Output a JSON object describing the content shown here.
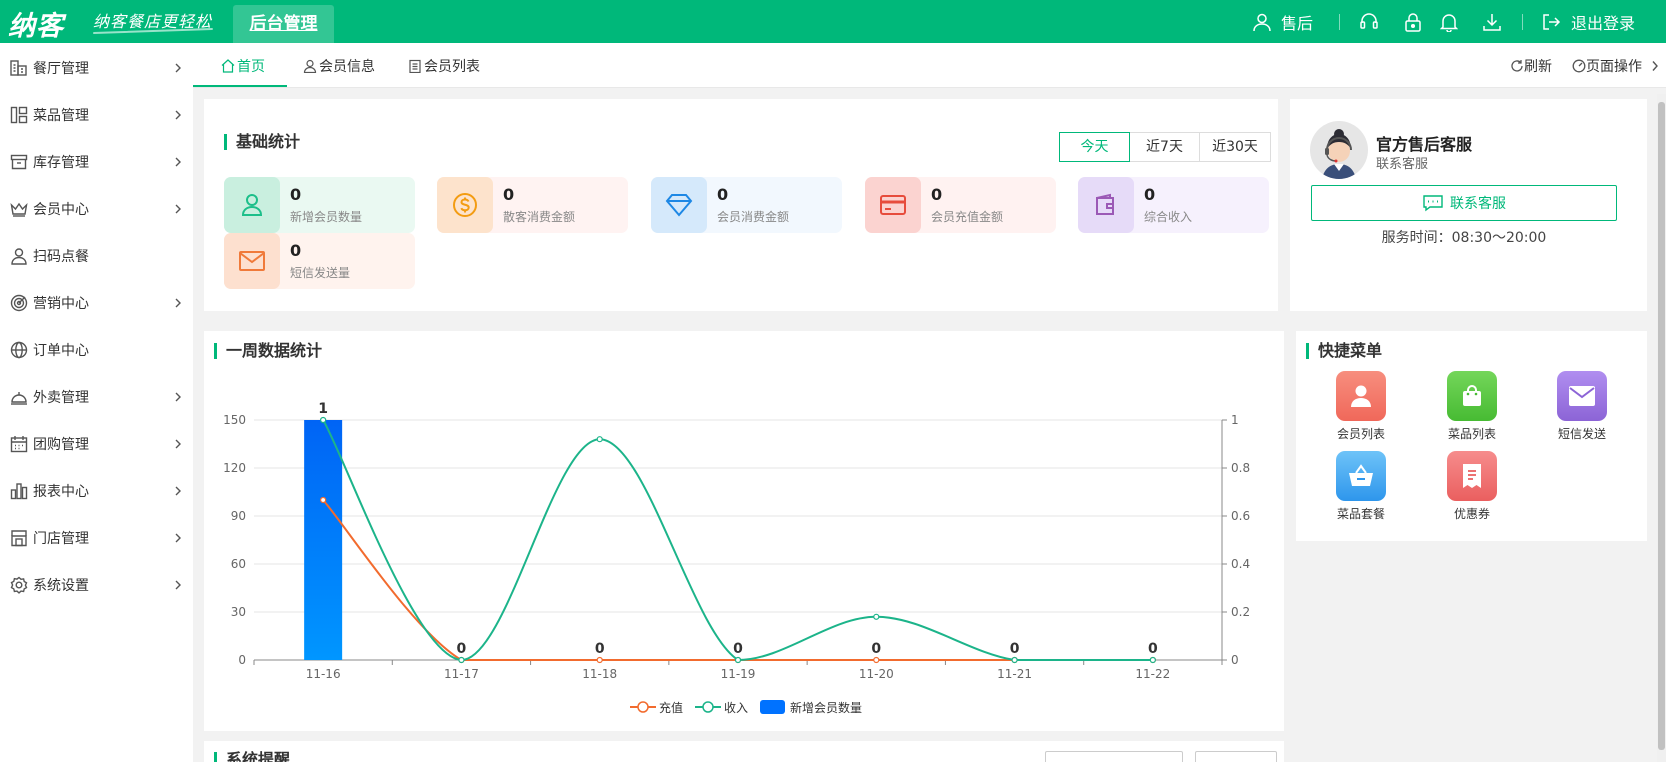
{
  "brand": {
    "logo": "纳客",
    "slogan": "纳客餐店更轻松"
  },
  "header": {
    "active_tab": "后台管理",
    "user": "售后",
    "logout": "退出登录"
  },
  "sidebar": {
    "items": [
      {
        "label": "餐厅管理",
        "icon": "restaurant-icon",
        "has_submenu": true
      },
      {
        "label": "菜品管理",
        "icon": "dishes-icon",
        "has_submenu": true
      },
      {
        "label": "库存管理",
        "icon": "inventory-icon",
        "has_submenu": true
      },
      {
        "label": "会员中心",
        "icon": "crown-icon",
        "has_submenu": true
      },
      {
        "label": "扫码点餐",
        "icon": "person-icon",
        "has_submenu": false
      },
      {
        "label": "营销中心",
        "icon": "target-icon",
        "has_submenu": true
      },
      {
        "label": "订单中心",
        "icon": "globe-icon",
        "has_submenu": false
      },
      {
        "label": "外卖管理",
        "icon": "bell-cover-icon",
        "has_submenu": true
      },
      {
        "label": "团购管理",
        "icon": "calendar-icon",
        "has_submenu": true
      },
      {
        "label": "报表中心",
        "icon": "bar-chart-icon",
        "has_submenu": true
      },
      {
        "label": "门店管理",
        "icon": "store-icon",
        "has_submenu": true
      },
      {
        "label": "系统设置",
        "icon": "gear-icon",
        "has_submenu": true
      }
    ]
  },
  "tabs": {
    "items": [
      {
        "label": "首页"
      },
      {
        "label": "会员信息"
      },
      {
        "label": "会员列表"
      }
    ],
    "refresh": "刷新",
    "page_ops": "页面操作"
  },
  "basic_stats": {
    "title": "基础统计",
    "ranges": [
      "今天",
      "近7天",
      "近30天"
    ],
    "active_range": "今天",
    "cards": [
      {
        "value": "0",
        "label": "新增会员数量",
        "icon": "user-icon",
        "color": "#1cbf8a",
        "bg": "#eaf9f2",
        "icon_bg": "#c9efdf"
      },
      {
        "value": "0",
        "label": "散客消费金额",
        "icon": "dollar-coin-icon",
        "color": "#f39c12",
        "bg": "#fff3f2",
        "icon_bg": "#fde3cc"
      },
      {
        "value": "0",
        "label": "会员消费金额",
        "icon": "diamond-icon",
        "color": "#1e88e5",
        "bg": "#f2f8fe",
        "icon_bg": "#d5e9fb"
      },
      {
        "value": "0",
        "label": "会员充值金额",
        "icon": "card-icon",
        "color": "#e74c3c",
        "bg": "#fff2f1",
        "icon_bg": "#fbd3d0"
      },
      {
        "value": "0",
        "label": "综合收入",
        "icon": "wallet-icon",
        "color": "#9b59b6",
        "bg": "#f6f1fd",
        "icon_bg": "#e6dbf8"
      },
      {
        "value": "0",
        "label": "短信发送量",
        "icon": "mail-icon",
        "color": "#f07a3a",
        "bg": "#fff3ee",
        "icon_bg": "#fde0cf"
      }
    ]
  },
  "service": {
    "name": "官方售后客服",
    "subtitle": "联系客服",
    "button": "联系客服",
    "hours": "服务时间：08:30～20:00"
  },
  "weekly": {
    "title": "一周数据统计",
    "legend": [
      "充值",
      "收入",
      "新增会员数量"
    ],
    "colors": {
      "recharge": "#f26b2e",
      "income": "#1cb48a",
      "bar": "#0072ff"
    }
  },
  "chart_data": {
    "type": "bar",
    "categories": [
      "11-16",
      "11-17",
      "11-18",
      "11-19",
      "11-20",
      "11-21",
      "11-22"
    ],
    "series": [
      {
        "name": "充值",
        "type": "line",
        "axis": "left",
        "values": [
          100,
          0,
          0,
          0,
          0,
          0,
          0
        ]
      },
      {
        "name": "收入",
        "type": "line",
        "axis": "left",
        "values": [
          150,
          0,
          138,
          0,
          27,
          0,
          0
        ]
      },
      {
        "name": "新增会员数量",
        "type": "bar",
        "axis": "right",
        "values": [
          1,
          0,
          0,
          0,
          0,
          0,
          0
        ]
      }
    ],
    "y_left": {
      "ticks": [
        0,
        30,
        60,
        90,
        120,
        150
      ],
      "lim": [
        0,
        150
      ]
    },
    "y_right": {
      "ticks": [
        "0",
        "0.2",
        "0.4",
        "0.6",
        "0.8",
        "1"
      ],
      "lim": [
        0,
        1
      ]
    },
    "bar_labels": [
      "1",
      "0",
      "0",
      "0",
      "0",
      "0",
      "0"
    ],
    "grid": true,
    "legend": "bottom-center"
  },
  "quick_menu": {
    "title": "快捷菜单",
    "items": [
      {
        "label": "会员列表",
        "icon": "user-icon",
        "color": "#f47c6a"
      },
      {
        "label": "菜品列表",
        "icon": "shopping-bag-icon",
        "color": "#5cc942"
      },
      {
        "label": "短信发送",
        "icon": "mail-icon",
        "color": "#a17ae0"
      },
      {
        "label": "菜品套餐",
        "icon": "basket-icon",
        "color": "#3fa6f2"
      },
      {
        "label": "优惠券",
        "icon": "coupon-icon",
        "color": "#f07070"
      }
    ]
  },
  "notice": {
    "title": "系统提醒"
  }
}
